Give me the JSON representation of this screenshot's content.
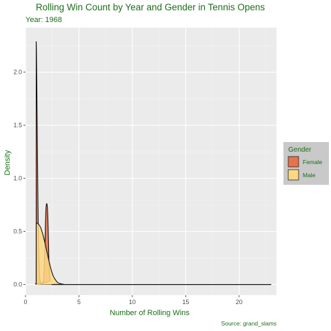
{
  "chart_data": {
    "type": "area",
    "title": "Rolling Win Count by Year and Gender in  Tennis Opens",
    "subtitle": "Year: 1968",
    "xlabel": "Number of Rolling Wins",
    "ylabel": "Density",
    "caption": "Source: grand_slams",
    "xlim": [
      0,
      23.5
    ],
    "ylim": [
      -0.1,
      2.42
    ],
    "x_ticks": [
      0,
      5,
      10,
      15,
      20
    ],
    "y_ticks": [
      0.0,
      0.5,
      1.0,
      1.5,
      2.0
    ],
    "y_tick_labels": [
      "0.0",
      "0.5",
      "1.0",
      "1.5",
      "2.0"
    ],
    "grid": true,
    "legend": {
      "title": "Gender",
      "placement": "right"
    },
    "series": [
      {
        "name": "Female",
        "color": "#e8734a",
        "x": [
          1.0,
          1.02,
          1.05,
          1.1,
          1.15,
          1.2,
          1.3,
          1.4,
          1.5,
          1.6,
          1.7,
          1.8,
          1.85,
          1.9,
          1.95,
          2.0,
          2.05,
          2.1,
          2.15,
          2.2,
          2.3,
          2.5,
          23.0
        ],
        "y": [
          2.29,
          2.2,
          1.95,
          1.45,
          0.9,
          0.5,
          0.12,
          0.02,
          0.0,
          0.01,
          0.05,
          0.3,
          0.5,
          0.68,
          0.75,
          0.76,
          0.72,
          0.6,
          0.4,
          0.2,
          0.04,
          0.0,
          0.0
        ]
      },
      {
        "name": "Male",
        "color": "#fdd882",
        "x": [
          1.0,
          1.2,
          1.4,
          1.6,
          1.8,
          2.0,
          2.2,
          2.4,
          2.6,
          2.8,
          3.0,
          3.3,
          3.6,
          4.0,
          23.0
        ],
        "y": [
          0.58,
          0.57,
          0.54,
          0.48,
          0.4,
          0.31,
          0.22,
          0.14,
          0.08,
          0.045,
          0.02,
          0.007,
          0.002,
          0.0,
          0.0
        ]
      }
    ]
  }
}
